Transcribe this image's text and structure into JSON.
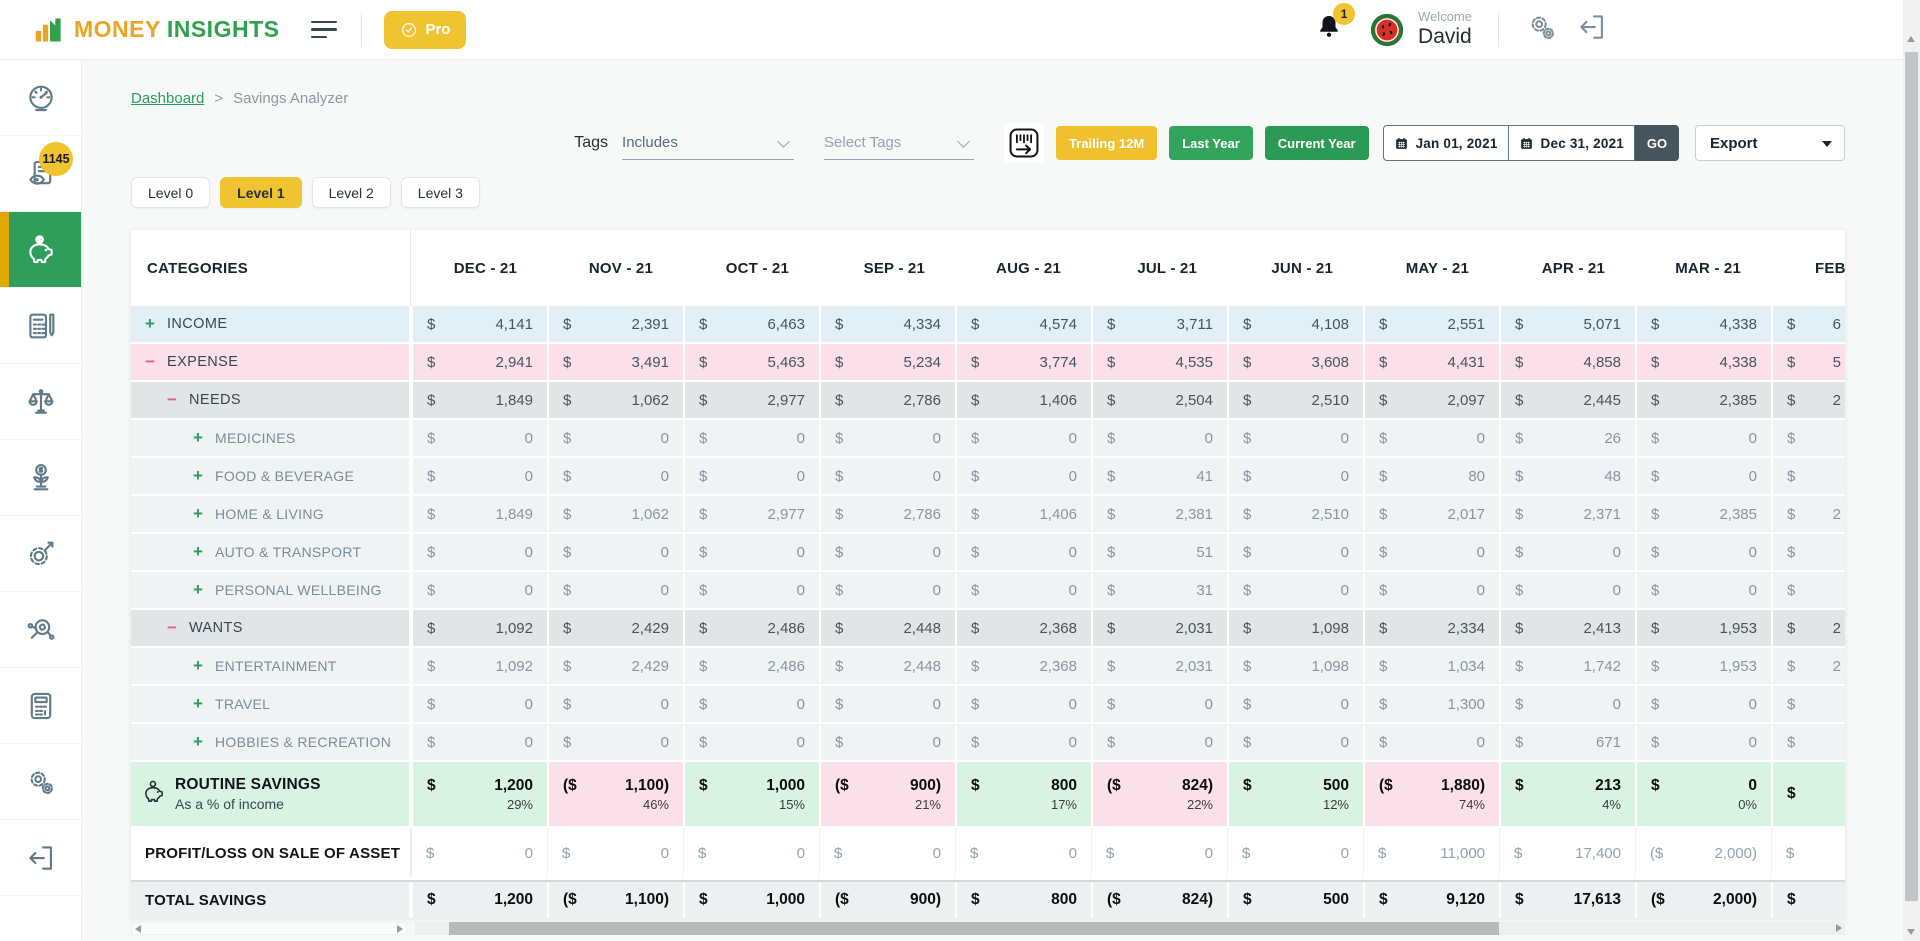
{
  "colors": {
    "brand_gold": "#EBA423",
    "brand_green": "#2FA14B",
    "accent_gold": "#F0C330",
    "accent_green": "#2F9E5B",
    "go_slate": "#46545E",
    "income_bg": "#E2EFF6",
    "expense_bg": "#FBDFE9",
    "group_bg": "#E2E5E6",
    "sub_bg": "#F0F3F4",
    "savings_positive_bg": "#D8F3E2",
    "savings_negative_bg": "#FBDFE9",
    "total_bg": "#ECF0F1",
    "plus_sign": "#2F9E5B",
    "minus_sign": "#EC5B8E"
  },
  "topbar": {
    "brand_word1": "MONEY",
    "brand_word2": "INSIGHTS",
    "pro_label": "Pro",
    "notification_count": "1",
    "welcome_label": "Welcome",
    "user_name": "David"
  },
  "sidebar": {
    "review_badge": "1145"
  },
  "breadcrumb": {
    "root": "Dashboard",
    "separator": ">",
    "current": "Savings Analyzer"
  },
  "filters": {
    "tags_label": "Tags",
    "tags_mode_value": "Includes",
    "tags_select_placeholder": "Select Tags",
    "trailing_12m_label": "Trailing 12M",
    "last_year_label": "Last Year",
    "current_year_label": "Current Year",
    "date_from": "Jan 01, 2021",
    "date_to": "Dec 31, 2021",
    "go_label": "GO",
    "export_label": "Export"
  },
  "levels": {
    "items": [
      {
        "label": "Level 0",
        "active": false
      },
      {
        "label": "Level 1",
        "active": true
      },
      {
        "label": "Level 2",
        "active": false
      },
      {
        "label": "Level 3",
        "active": false
      }
    ]
  },
  "table": {
    "categories_header": "CATEGORIES",
    "months": [
      "DEC - 21",
      "NOV - 21",
      "OCT - 21",
      "SEP - 21",
      "AUG - 21",
      "JUL - 21",
      "JUN - 21",
      "MAY - 21",
      "APR - 21",
      "MAR - 21",
      "FEB"
    ],
    "rows": [
      {
        "id": "income",
        "label": "INCOME",
        "sign": "plus",
        "indent": 0,
        "style": "income",
        "values": [
          "4,141",
          "2,391",
          "6,463",
          "4,334",
          "4,574",
          "3,711",
          "4,108",
          "2,551",
          "5,071",
          "4,338",
          "6"
        ]
      },
      {
        "id": "expense",
        "label": "EXPENSE",
        "sign": "minus",
        "indent": 0,
        "style": "expense",
        "values": [
          "2,941",
          "3,491",
          "5,463",
          "5,234",
          "3,774",
          "4,535",
          "3,608",
          "4,431",
          "4,858",
          "4,338",
          "5"
        ]
      },
      {
        "id": "needs",
        "label": "NEEDS",
        "sign": "minus",
        "indent": 1,
        "style": "group",
        "values": [
          "1,849",
          "1,062",
          "2,977",
          "2,786",
          "1,406",
          "2,504",
          "2,510",
          "2,097",
          "2,445",
          "2,385",
          "2"
        ]
      },
      {
        "id": "medicines",
        "label": "MEDICINES",
        "sign": "plus",
        "indent": 2,
        "style": "sub",
        "values": [
          "0",
          "0",
          "0",
          "0",
          "0",
          "0",
          "0",
          "0",
          "26",
          "0",
          ""
        ]
      },
      {
        "id": "food-beverage",
        "label": "FOOD & BEVERAGE",
        "sign": "plus",
        "indent": 2,
        "style": "sub",
        "values": [
          "0",
          "0",
          "0",
          "0",
          "0",
          "41",
          "0",
          "80",
          "48",
          "0",
          ""
        ]
      },
      {
        "id": "home-living",
        "label": "HOME & LIVING",
        "sign": "plus",
        "indent": 2,
        "style": "sub",
        "values": [
          "1,849",
          "1,062",
          "2,977",
          "2,786",
          "1,406",
          "2,381",
          "2,510",
          "2,017",
          "2,371",
          "2,385",
          "2"
        ]
      },
      {
        "id": "auto-transport",
        "label": "AUTO & TRANSPORT",
        "sign": "plus",
        "indent": 2,
        "style": "sub",
        "values": [
          "0",
          "0",
          "0",
          "0",
          "0",
          "51",
          "0",
          "0",
          "0",
          "0",
          ""
        ]
      },
      {
        "id": "personal-wellbeing",
        "label": "PERSONAL WELLBEING",
        "sign": "plus",
        "indent": 2,
        "style": "sub",
        "values": [
          "0",
          "0",
          "0",
          "0",
          "0",
          "31",
          "0",
          "0",
          "0",
          "0",
          ""
        ]
      },
      {
        "id": "wants",
        "label": "WANTS",
        "sign": "minus",
        "indent": 1,
        "style": "group",
        "values": [
          "1,092",
          "2,429",
          "2,486",
          "2,448",
          "2,368",
          "2,031",
          "1,098",
          "2,334",
          "2,413",
          "1,953",
          "2"
        ]
      },
      {
        "id": "entertainment",
        "label": "ENTERTAINMENT",
        "sign": "plus",
        "indent": 2,
        "style": "sub",
        "values": [
          "1,092",
          "2,429",
          "2,486",
          "2,448",
          "2,368",
          "2,031",
          "1,098",
          "1,034",
          "1,742",
          "1,953",
          "2"
        ]
      },
      {
        "id": "travel",
        "label": "TRAVEL",
        "sign": "plus",
        "indent": 2,
        "style": "sub",
        "values": [
          "0",
          "0",
          "0",
          "0",
          "0",
          "0",
          "0",
          "1,300",
          "0",
          "0",
          ""
        ]
      },
      {
        "id": "hobbies-recreation",
        "label": "HOBBIES & RECREATION",
        "sign": "plus",
        "indent": 2,
        "style": "sub",
        "values": [
          "0",
          "0",
          "0",
          "0",
          "0",
          "0",
          "0",
          "0",
          "671",
          "0",
          ""
        ]
      },
      {
        "id": "routine-savings",
        "label": "ROUTINE SAVINGS",
        "sublabel": "As a % of income",
        "icon": "piggy-bank",
        "style": "savings",
        "values": [
          {
            "v": "1,200",
            "p": "29%"
          },
          {
            "v": "1,100",
            "neg": true,
            "p": "46%"
          },
          {
            "v": "1,000",
            "p": "15%"
          },
          {
            "v": "900",
            "neg": true,
            "p": "21%"
          },
          {
            "v": "800",
            "p": "17%"
          },
          {
            "v": "824",
            "neg": true,
            "p": "22%"
          },
          {
            "v": "500",
            "p": "12%"
          },
          {
            "v": "1,880",
            "neg": true,
            "p": "74%"
          },
          {
            "v": "213",
            "p": "4%"
          },
          {
            "v": "0",
            "p": "0%"
          },
          {
            "v": "",
            "p": ""
          }
        ]
      },
      {
        "id": "profit-loss-on-sale-of-asset",
        "label": "PROFIT/LOSS ON SALE OF ASSET",
        "style": "profit",
        "values": [
          "0",
          "0",
          "0",
          "0",
          "0",
          "0",
          "0",
          "11,000",
          "17,400",
          {
            "v": "2,000",
            "neg": true
          },
          ""
        ]
      },
      {
        "id": "total-savings",
        "label": "TOTAL SAVINGS",
        "style": "total",
        "values": [
          "1,200",
          {
            "v": "1,100",
            "neg": true
          },
          "1,000",
          {
            "v": "900",
            "neg": true
          },
          "800",
          {
            "v": "824",
            "neg": true
          },
          "500",
          "9,120",
          "17,613",
          {
            "v": "2,000",
            "neg": true
          },
          ""
        ]
      }
    ]
  }
}
